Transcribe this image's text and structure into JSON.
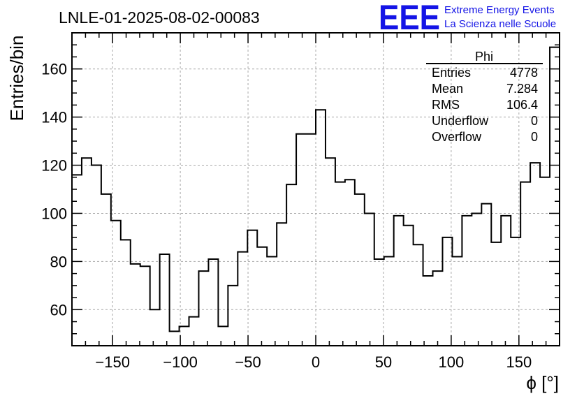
{
  "header": {
    "run_title": "LNLE-01-2025-08-02-00083",
    "logo_text": "EEE",
    "org_line1": "Extreme Energy Events",
    "org_line2": "La Scienza nelle Scuole",
    "logo_color": "#1414e6"
  },
  "stats_box": {
    "title": "Phi",
    "rows": [
      {
        "label": "Entries",
        "value": "4778"
      },
      {
        "label": "Mean",
        "value": "7.284"
      },
      {
        "label": "RMS",
        "value": "106.4"
      },
      {
        "label": "Underflow",
        "value": "0"
      },
      {
        "label": "Overflow",
        "value": "0"
      }
    ]
  },
  "chart_data": {
    "type": "histogram",
    "title": "LNLE-01-2025-08-02-00083",
    "xlabel": "ϕ [°]",
    "ylabel": "Entries/bin",
    "xlim": [
      -180,
      180
    ],
    "ylim": [
      45,
      175
    ],
    "bin_width": 7.2,
    "bin_start": -180,
    "values": [
      116,
      123,
      120,
      108,
      97,
      89,
      79,
      78,
      60,
      83,
      51,
      53,
      57,
      76,
      81,
      53,
      70,
      84,
      93,
      86,
      82,
      96,
      112,
      133,
      133,
      143,
      123,
      113,
      114,
      108,
      100,
      81,
      82,
      99,
      95,
      87,
      74,
      76,
      90,
      82,
      99,
      100,
      104,
      88,
      99,
      90,
      113,
      121,
      115,
      169
    ],
    "xticks": [
      -150,
      -100,
      -50,
      0,
      50,
      100,
      150
    ],
    "xtick_labels": [
      "−150",
      "−100",
      "−50",
      "0",
      "50",
      "100",
      "150"
    ],
    "yticks": [
      60,
      80,
      100,
      120,
      140,
      160
    ],
    "ytick_labels": [
      "60",
      "80",
      "100",
      "120",
      "140",
      "160"
    ],
    "grid": true,
    "line_color": "#000000"
  }
}
